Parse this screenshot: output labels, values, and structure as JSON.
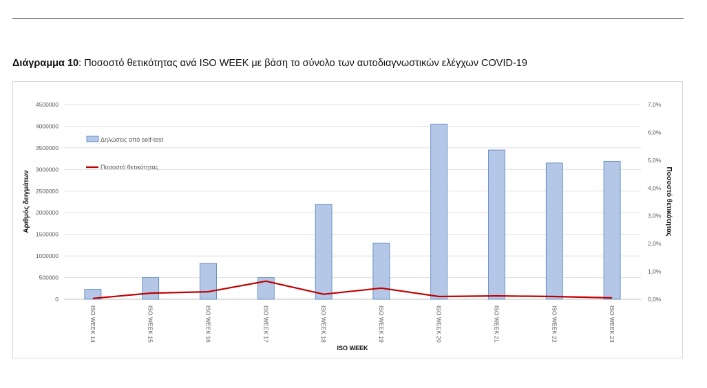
{
  "caption": {
    "label": "Διάγραμμα 10",
    "separator": ":",
    "text": " Ποσοστό θετικότητας ανά ISO WEEK με βάση το σύνολο των αυτοδιαγνωστικών ελέγχων COVID-19"
  },
  "chart_data": {
    "type": "bar",
    "categories": [
      "ISO WEEK 14",
      "ISO WEEK 15",
      "ISO WEEK 16",
      "ISO WEEK 17",
      "ISO WEEK 18",
      "ISO WEEK 19",
      "ISO WEEK 20",
      "ISO WEEK 21",
      "ISO WEEK 22",
      "ISO WEEK 23"
    ],
    "series": [
      {
        "name": "Δηλώσεις από self-test",
        "type": "bar",
        "axis": "left",
        "color": "#b4c7e7",
        "stroke": "#4f81bd",
        "values": [
          230000,
          500000,
          830000,
          500000,
          2190000,
          1300000,
          4050000,
          3450000,
          3150000,
          3190000
        ]
      },
      {
        "name": "Ποσοστό θετικότητας",
        "type": "line",
        "axis": "right",
        "color": "#c00000",
        "values": [
          0.03,
          0.22,
          0.27,
          0.65,
          0.18,
          0.4,
          0.1,
          0.12,
          0.1,
          0.05
        ]
      }
    ],
    "xlabel": "ISO WEEK",
    "ylabel": "Αριθμός δειγμάτων",
    "y2label": "Ποσοστό θετικότητας",
    "ylim": [
      0,
      4500000
    ],
    "y2lim": [
      0,
      7
    ],
    "yticks": [
      "0",
      "500000",
      "1000000",
      "1500000",
      "2000000",
      "2500000",
      "3000000",
      "3500000",
      "4000000",
      "4500000"
    ],
    "y2ticks": [
      "0,0%",
      "1,0%",
      "2,0%",
      "3,0%",
      "4,0%",
      "5,0%",
      "6,0%",
      "7,0%"
    ],
    "grid": true,
    "legend": "top-left"
  }
}
